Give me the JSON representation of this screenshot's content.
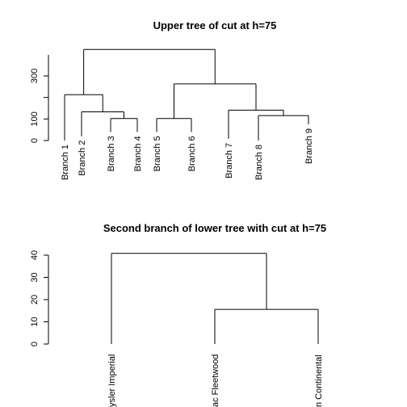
{
  "chart_data": [
    {
      "type": "dendrogram",
      "title": "Upper tree of cut at h=75",
      "ylim": [
        0,
        420
      ],
      "yticks": [
        0,
        100,
        300
      ],
      "leaves": [
        "Branch 1",
        "Branch 2",
        "Branch 3",
        "Branch 4",
        "Branch 5",
        "Branch 6",
        "Branch 7",
        "Branch 8",
        "Branch 9"
      ],
      "leaf_heights": [
        0,
        20,
        40,
        40,
        40,
        40,
        8,
        0,
        75
      ],
      "merges": [
        {
          "left": "Branch 3",
          "right": "Branch 4",
          "height": 102
        },
        {
          "left": "Branch 2",
          "right": "(Branch 3, Branch 4)",
          "height": 133
        },
        {
          "left": "Branch 1",
          "right": "(Branch 2, Branch 3, Branch 4)",
          "height": 213
        },
        {
          "left": "Branch 5",
          "right": "Branch 6",
          "height": 102
        },
        {
          "left": "Branch 8",
          "right": "Branch 9",
          "height": 116
        },
        {
          "left": "Branch 7",
          "right": "(Branch 8, Branch 9)",
          "height": 141
        },
        {
          "left": "(Branch 5, Branch 6)",
          "right": "(Branch 7, Branch 8, Branch 9)",
          "height": 263
        },
        {
          "left": "(Branch 1 … Branch 4)",
          "right": "(Branch 5 … Branch 9)",
          "height": 423
        }
      ]
    },
    {
      "type": "dendrogram",
      "title": "Second branch of lower tree with cut at h=75",
      "ylim": [
        0,
        40
      ],
      "yticks": [
        0,
        10,
        20,
        30,
        40
      ],
      "leaves": [
        "Chrysler Imperial",
        "Cadillac Fleetwood",
        "Lincoln Continental"
      ],
      "leaf_labels_visible": [
        "ysler Imperial",
        "ac Fleetwood",
        "n Continental"
      ],
      "merges": [
        {
          "left": "Cadillac Fleetwood",
          "right": "Lincoln Continental",
          "height": 15.6
        },
        {
          "left": "Chrysler Imperial",
          "right": "(Cadillac Fleetwood, Lincoln Continental)",
          "height": 40.8
        }
      ]
    }
  ]
}
